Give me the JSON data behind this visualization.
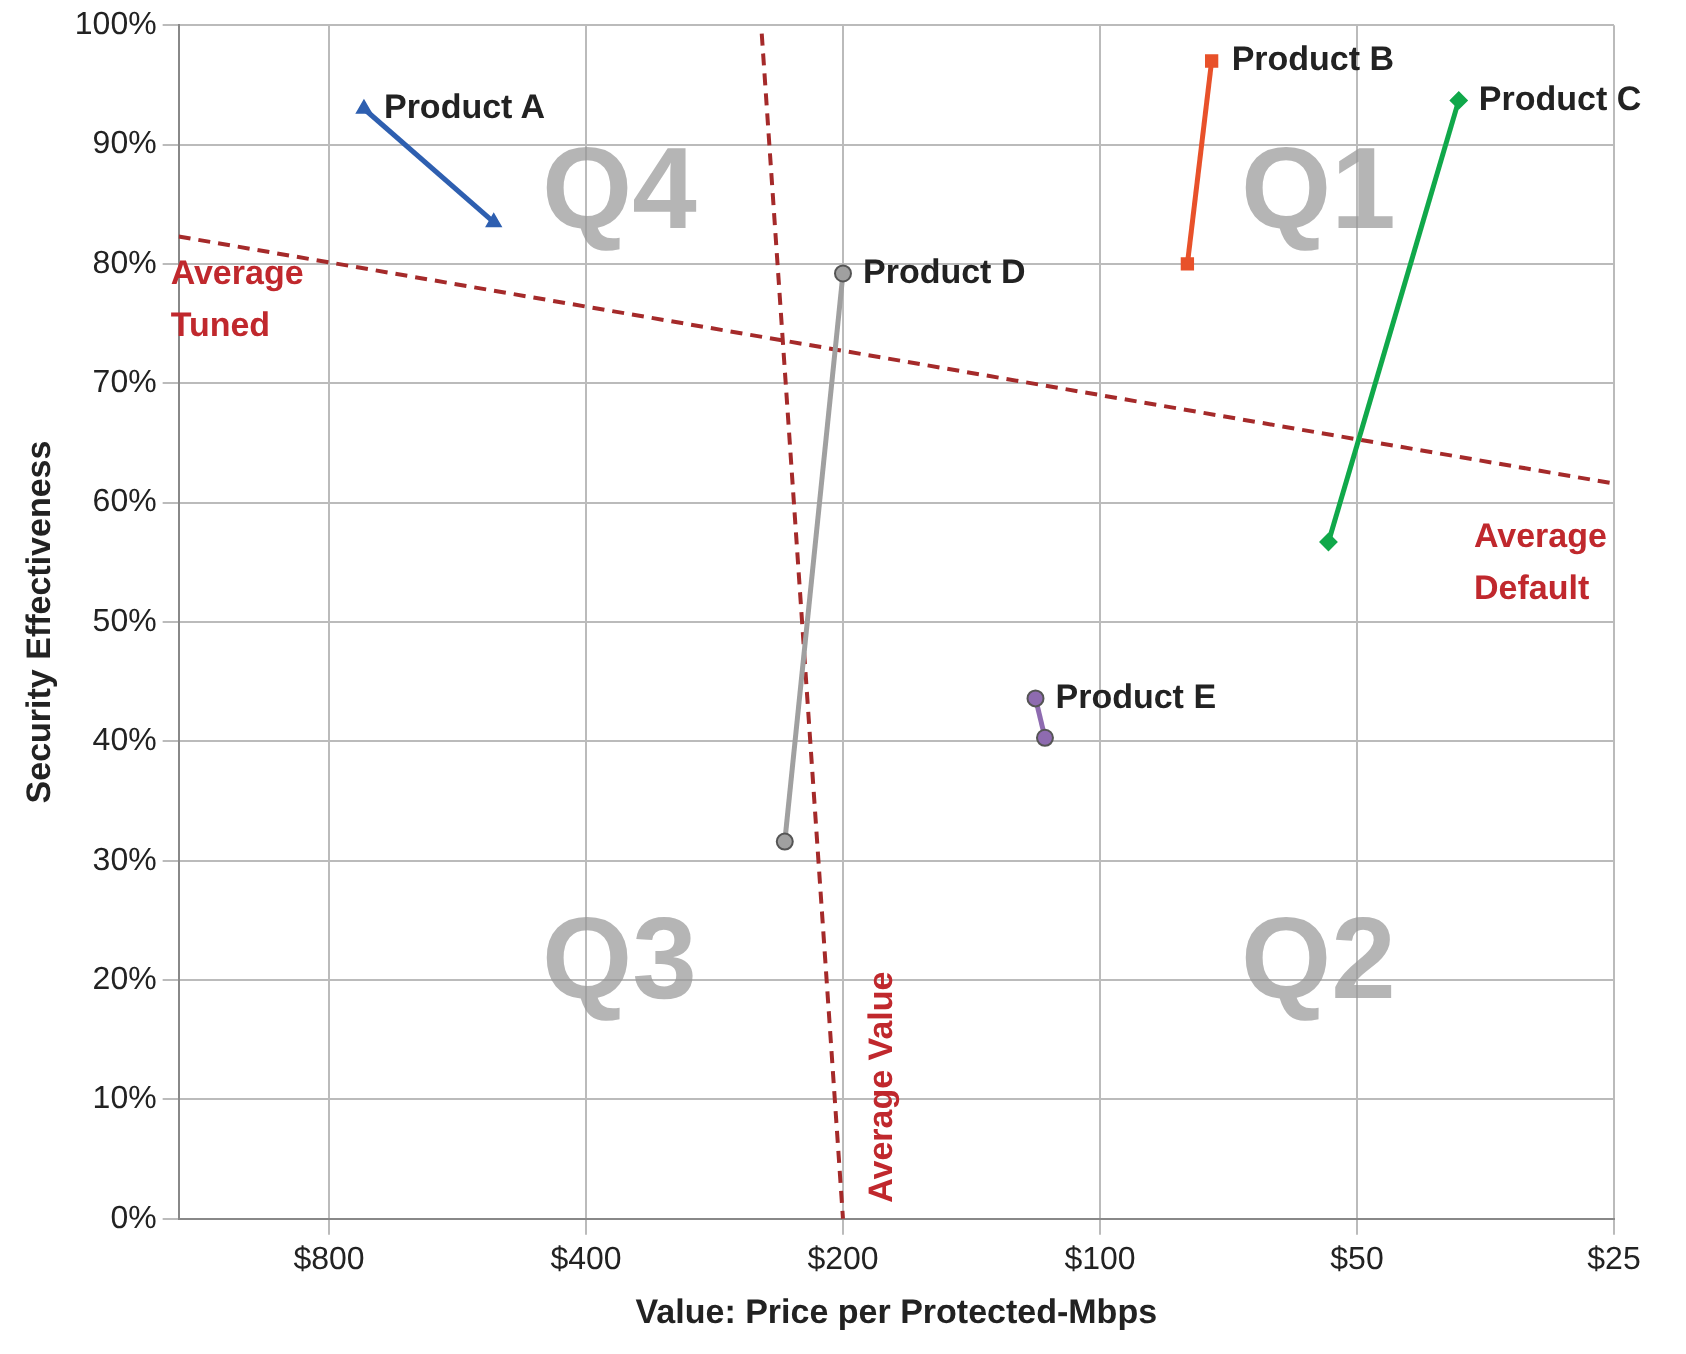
{
  "chart_data": {
    "type": "line",
    "xlabel": "Value: Price per Protected-Mbps",
    "ylabel": "Security Effectiveness",
    "log": "x",
    "xlim": [
      1200,
      25
    ],
    "xticks": [
      {
        "value": 800,
        "label": "$800"
      },
      {
        "value": 400,
        "label": "$400"
      },
      {
        "value": 200,
        "label": "$200"
      },
      {
        "value": 100,
        "label": "$100"
      },
      {
        "value": 50,
        "label": "$50"
      },
      {
        "value": 25,
        "label": "$25"
      }
    ],
    "ylim": [
      0,
      100
    ],
    "yticks": [
      {
        "value": 0,
        "label": "0%"
      },
      {
        "value": 10,
        "label": "10%"
      },
      {
        "value": 20,
        "label": "20%"
      },
      {
        "value": 30,
        "label": "30%"
      },
      {
        "value": 40,
        "label": "40%"
      },
      {
        "value": 50,
        "label": "50%"
      },
      {
        "value": 60,
        "label": "60%"
      },
      {
        "value": 70,
        "label": "70%"
      },
      {
        "value": 80,
        "label": "80%"
      },
      {
        "value": 90,
        "label": "90%"
      },
      {
        "value": 100,
        "label": "100%"
      }
    ],
    "grid": true,
    "legend": false,
    "series": [
      {
        "name": "Product A",
        "color": "#2e5fb0",
        "marker": "triangle",
        "x": [
          728,
          513
        ],
        "values": [
          93,
          83.5
        ]
      },
      {
        "name": "Product B",
        "color": "#e8512a",
        "marker": "square",
        "x": [
          79,
          74
        ],
        "values": [
          80,
          97
        ]
      },
      {
        "name": "Product C",
        "color": "#10a84a",
        "marker": "diamond",
        "x": [
          54,
          38
        ],
        "values": [
          56.7,
          93.7
        ]
      },
      {
        "name": "Product D",
        "color": "#a0a0a0",
        "marker": "circle",
        "x": [
          234,
          200
        ],
        "values": [
          31.6,
          79.2
        ]
      },
      {
        "name": "Product E",
        "color": "#8e6bb0",
        "marker": "circle",
        "x": [
          119,
          116
        ],
        "values": [
          43.6,
          40.3
        ]
      },
      {
        "color": "#a52a2a",
        "marker": "none",
        "line_style": "dashed",
        "x": [
          1200,
          25
        ],
        "values": [
          82.3,
          61.6
        ]
      },
      {
        "name": "Average Value",
        "color": "#a52a2a",
        "marker": "none",
        "line_style": "dashed",
        "x": [
          249,
          200
        ],
        "values": [
          99.3,
          0
        ]
      }
    ],
    "annotations": [
      "Q4",
      "Q1",
      "Q3",
      "Q2",
      "Average Tuned",
      "Average Default"
    ]
  }
}
